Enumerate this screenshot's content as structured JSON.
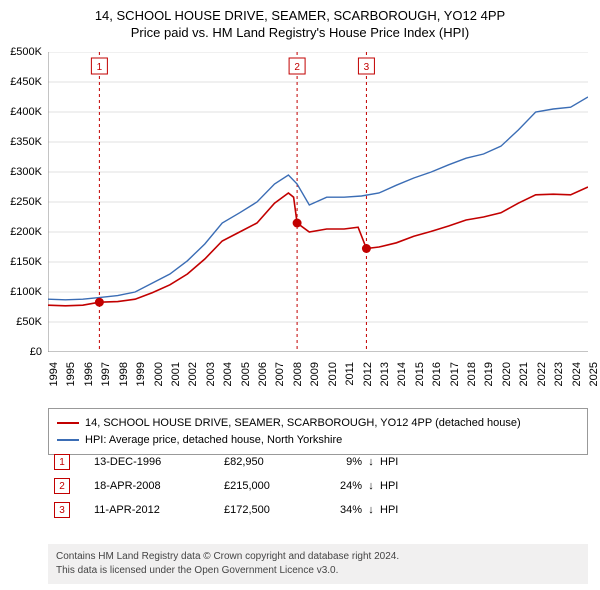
{
  "title": {
    "line1": "14, SCHOOL HOUSE DRIVE, SEAMER, SCARBOROUGH, YO12 4PP",
    "line2": "Price paid vs. HM Land Registry's House Price Index (HPI)"
  },
  "chart": {
    "type": "line",
    "background_color": "#ffffff",
    "grid_color": "#e0e0e0",
    "axis_color": "#888888",
    "x": {
      "min": 1994,
      "max": 2025,
      "tick_step": 1,
      "labels": [
        "1994",
        "1995",
        "1996",
        "1997",
        "1998",
        "1999",
        "2000",
        "2001",
        "2002",
        "2003",
        "2004",
        "2005",
        "2006",
        "2007",
        "2008",
        "2009",
        "2010",
        "2011",
        "2012",
        "2013",
        "2014",
        "2015",
        "2016",
        "2017",
        "2018",
        "2019",
        "2020",
        "2021",
        "2022",
        "2023",
        "2024",
        "2025"
      ],
      "label_fontsize": 11,
      "label_rotation": -90
    },
    "y": {
      "min": 0,
      "max": 500000,
      "tick_step": 50000,
      "labels": [
        "£0",
        "£50K",
        "£100K",
        "£150K",
        "£200K",
        "£250K",
        "£300K",
        "£350K",
        "£400K",
        "£450K",
        "£500K"
      ],
      "label_fontsize": 11
    },
    "series": [
      {
        "name": "14, SCHOOL HOUSE DRIVE, SEAMER, SCARBOROUGH, YO12 4PP (detached house)",
        "color": "#c20000",
        "line_width": 1.6,
        "points": [
          [
            1994,
            78000
          ],
          [
            1995,
            77000
          ],
          [
            1996,
            78000
          ],
          [
            1996.95,
            82950
          ],
          [
            1998,
            84000
          ],
          [
            1999,
            88000
          ],
          [
            2000,
            99000
          ],
          [
            2001,
            112000
          ],
          [
            2002,
            130000
          ],
          [
            2003,
            155000
          ],
          [
            2004,
            185000
          ],
          [
            2005,
            200000
          ],
          [
            2006,
            215000
          ],
          [
            2007,
            248000
          ],
          [
            2007.8,
            265000
          ],
          [
            2008.1,
            258000
          ],
          [
            2008.3,
            215000
          ],
          [
            2009,
            200000
          ],
          [
            2010,
            205000
          ],
          [
            2011,
            205000
          ],
          [
            2011.8,
            208000
          ],
          [
            2012.28,
            172500
          ],
          [
            2013,
            175000
          ],
          [
            2014,
            182000
          ],
          [
            2015,
            193000
          ],
          [
            2016,
            201000
          ],
          [
            2017,
            210000
          ],
          [
            2018,
            220000
          ],
          [
            2019,
            225000
          ],
          [
            2020,
            232000
          ],
          [
            2021,
            248000
          ],
          [
            2022,
            262000
          ],
          [
            2023,
            263000
          ],
          [
            2024,
            262000
          ],
          [
            2025,
            275000
          ]
        ]
      },
      {
        "name": "HPI: Average price, detached house, North Yorkshire",
        "color": "#3b6db5",
        "line_width": 1.4,
        "points": [
          [
            1994,
            88000
          ],
          [
            1995,
            87000
          ],
          [
            1996,
            88000
          ],
          [
            1997,
            91000
          ],
          [
            1998,
            94000
          ],
          [
            1999,
            100000
          ],
          [
            2000,
            115000
          ],
          [
            2001,
            130000
          ],
          [
            2002,
            152000
          ],
          [
            2003,
            180000
          ],
          [
            2004,
            215000
          ],
          [
            2005,
            232000
          ],
          [
            2006,
            250000
          ],
          [
            2007,
            280000
          ],
          [
            2007.8,
            295000
          ],
          [
            2008.3,
            280000
          ],
          [
            2009,
            245000
          ],
          [
            2010,
            258000
          ],
          [
            2011,
            258000
          ],
          [
            2012,
            260000
          ],
          [
            2013,
            265000
          ],
          [
            2014,
            278000
          ],
          [
            2015,
            290000
          ],
          [
            2016,
            300000
          ],
          [
            2017,
            312000
          ],
          [
            2018,
            323000
          ],
          [
            2019,
            330000
          ],
          [
            2020,
            343000
          ],
          [
            2021,
            370000
          ],
          [
            2022,
            400000
          ],
          [
            2023,
            405000
          ],
          [
            2024,
            408000
          ],
          [
            2025,
            425000
          ]
        ]
      }
    ],
    "markers": [
      {
        "id": "1",
        "x": 1996.95,
        "y": 82950,
        "color": "#c20000"
      },
      {
        "id": "2",
        "x": 2008.3,
        "y": 215000,
        "color": "#c20000"
      },
      {
        "id": "3",
        "x": 2012.28,
        "y": 172500,
        "color": "#c20000"
      }
    ]
  },
  "legend": {
    "items": [
      {
        "color": "#c20000",
        "label": "14, SCHOOL HOUSE DRIVE, SEAMER, SCARBOROUGH, YO12 4PP (detached house)"
      },
      {
        "color": "#3b6db5",
        "label": "HPI: Average price, detached house, North Yorkshire"
      }
    ]
  },
  "marker_rows": [
    {
      "id": "1",
      "color": "#c20000",
      "date": "13-DEC-1996",
      "price": "£82,950",
      "pct": "9%",
      "arrow": "↓",
      "suffix": "HPI"
    },
    {
      "id": "2",
      "color": "#c20000",
      "date": "18-APR-2008",
      "price": "£215,000",
      "pct": "24%",
      "arrow": "↓",
      "suffix": "HPI"
    },
    {
      "id": "3",
      "color": "#c20000",
      "date": "11-APR-2012",
      "price": "£172,500",
      "pct": "34%",
      "arrow": "↓",
      "suffix": "HPI"
    }
  ],
  "footer": {
    "line1": "Contains HM Land Registry data © Crown copyright and database right 2024.",
    "line2": "This data is licensed under the Open Government Licence v3.0."
  }
}
